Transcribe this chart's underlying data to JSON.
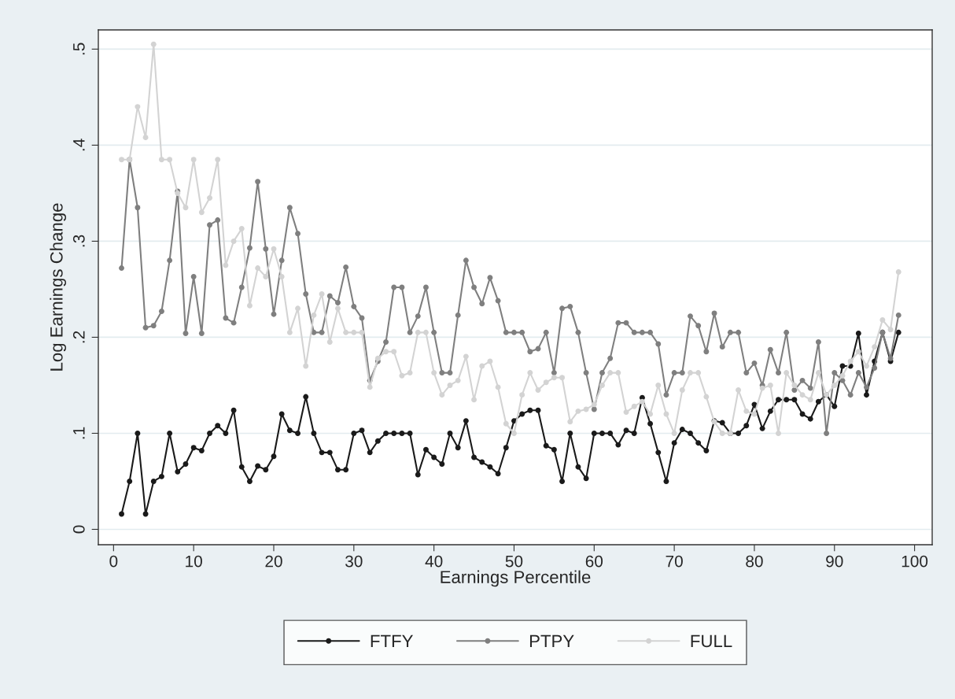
{
  "chart_data": {
    "type": "line",
    "xlabel": "Earnings Percentile",
    "ylabel": "Log Earnings Change",
    "x": [
      1,
      2,
      3,
      4,
      5,
      6,
      7,
      8,
      9,
      10,
      11,
      12,
      13,
      14,
      15,
      16,
      17,
      18,
      19,
      20,
      21,
      22,
      23,
      24,
      25,
      26,
      27,
      28,
      29,
      30,
      31,
      32,
      33,
      34,
      35,
      36,
      37,
      38,
      39,
      40,
      41,
      42,
      43,
      44,
      45,
      46,
      47,
      48,
      49,
      50,
      51,
      52,
      53,
      54,
      55,
      56,
      57,
      58,
      59,
      60,
      61,
      62,
      63,
      64,
      65,
      66,
      67,
      68,
      69,
      70,
      71,
      72,
      73,
      74,
      75,
      76,
      77,
      78,
      79,
      80,
      81,
      82,
      83,
      84,
      85,
      86,
      87,
      88,
      89,
      90,
      91,
      92,
      93,
      94,
      95,
      96,
      97,
      98
    ],
    "series": [
      {
        "name": "FTFY",
        "color": "#1a1a1a",
        "values": [
          0.016,
          0.05,
          0.1,
          0.016,
          0.05,
          0.055,
          0.1,
          0.06,
          0.068,
          0.085,
          0.082,
          0.1,
          0.108,
          0.1,
          0.124,
          0.065,
          0.05,
          0.066,
          0.062,
          0.076,
          0.12,
          0.103,
          0.1,
          0.138,
          0.1,
          0.08,
          0.08,
          0.062,
          0.062,
          0.1,
          0.103,
          0.08,
          0.092,
          0.1,
          0.1,
          0.1,
          0.1,
          0.057,
          0.083,
          0.075,
          0.068,
          0.1,
          0.085,
          0.113,
          0.075,
          0.07,
          0.065,
          0.058,
          0.085,
          0.113,
          0.12,
          0.124,
          0.124,
          0.087,
          0.083,
          0.05,
          0.1,
          0.065,
          0.053,
          0.1,
          0.1,
          0.1,
          0.088,
          0.103,
          0.1,
          0.137,
          0.11,
          0.08,
          0.05,
          0.09,
          0.104,
          0.1,
          0.09,
          0.082,
          0.113,
          0.111,
          0.1,
          0.1,
          0.108,
          0.13,
          0.105,
          0.123,
          0.135,
          0.135,
          0.135,
          0.12,
          0.115,
          0.133,
          0.14,
          0.128,
          0.17,
          0.17,
          0.204,
          0.14,
          0.175,
          0.205,
          0.175,
          0.205
        ]
      },
      {
        "name": "PTPY",
        "color": "#7f7f7f",
        "values": [
          0.272,
          0.385,
          0.335,
          0.21,
          0.212,
          0.227,
          0.28,
          0.352,
          0.204,
          0.263,
          0.204,
          0.317,
          0.322,
          0.22,
          0.215,
          0.252,
          0.293,
          0.362,
          0.292,
          0.224,
          0.28,
          0.335,
          0.308,
          0.245,
          0.205,
          0.205,
          0.243,
          0.236,
          0.273,
          0.232,
          0.22,
          0.155,
          0.175,
          0.195,
          0.252,
          0.252,
          0.205,
          0.222,
          0.252,
          0.205,
          0.163,
          0.163,
          0.223,
          0.28,
          0.252,
          0.235,
          0.262,
          0.238,
          0.205,
          0.205,
          0.205,
          0.185,
          0.188,
          0.205,
          0.163,
          0.23,
          0.232,
          0.205,
          0.163,
          0.125,
          0.163,
          0.178,
          0.215,
          0.215,
          0.205,
          0.205,
          0.205,
          0.193,
          0.14,
          0.163,
          0.163,
          0.222,
          0.212,
          0.185,
          0.225,
          0.19,
          0.205,
          0.205,
          0.163,
          0.173,
          0.15,
          0.187,
          0.163,
          0.205,
          0.145,
          0.155,
          0.147,
          0.195,
          0.1,
          0.163,
          0.155,
          0.14,
          0.163,
          0.148,
          0.168,
          0.205,
          0.178,
          0.223
        ]
      },
      {
        "name": "FULL",
        "color": "#d3d3d3",
        "values": [
          0.385,
          0.385,
          0.44,
          0.408,
          0.505,
          0.385,
          0.385,
          0.35,
          0.335,
          0.385,
          0.33,
          0.345,
          0.385,
          0.275,
          0.3,
          0.313,
          0.233,
          0.272,
          0.263,
          0.292,
          0.263,
          0.205,
          0.23,
          0.17,
          0.223,
          0.245,
          0.195,
          0.23,
          0.205,
          0.205,
          0.205,
          0.148,
          0.178,
          0.185,
          0.185,
          0.16,
          0.163,
          0.205,
          0.205,
          0.163,
          0.14,
          0.15,
          0.155,
          0.18,
          0.135,
          0.17,
          0.175,
          0.148,
          0.11,
          0.1,
          0.14,
          0.163,
          0.145,
          0.153,
          0.158,
          0.158,
          0.112,
          0.123,
          0.125,
          0.13,
          0.15,
          0.163,
          0.163,
          0.122,
          0.128,
          0.133,
          0.12,
          0.15,
          0.12,
          0.1,
          0.145,
          0.163,
          0.163,
          0.138,
          0.112,
          0.1,
          0.1,
          0.145,
          0.123,
          0.12,
          0.147,
          0.15,
          0.1,
          0.163,
          0.15,
          0.14,
          0.135,
          0.163,
          0.14,
          0.15,
          0.16,
          0.175,
          0.185,
          0.17,
          0.19,
          0.218,
          0.208,
          0.268
        ]
      }
    ],
    "xlim": [
      -1.9,
      102.2
    ],
    "ylim": [
      -0.016,
      0.52
    ],
    "xticks": [
      0,
      10,
      20,
      30,
      40,
      50,
      60,
      70,
      80,
      90,
      100
    ],
    "yticks": [
      {
        "value": 0,
        "label": "0"
      },
      {
        "value": 0.1,
        "label": ".1"
      },
      {
        "value": 0.2,
        "label": ".2"
      },
      {
        "value": 0.3,
        "label": ".3"
      },
      {
        "value": 0.4,
        "label": ".4"
      },
      {
        "value": 0.5,
        "label": ".5"
      }
    ],
    "grid": "y",
    "legend": "bottom",
    "marker": "circle",
    "line_style": "solid"
  }
}
